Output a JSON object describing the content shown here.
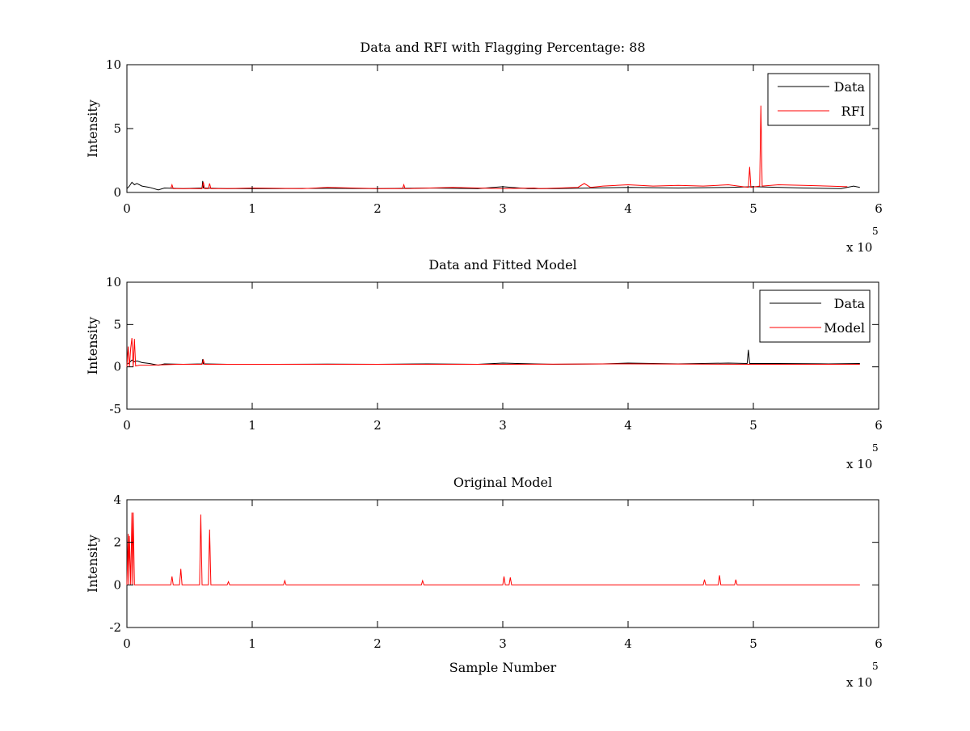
{
  "chart_data": [
    {
      "type": "line",
      "title": "Data and RFI with Flagging Percentage: 88",
      "xlabel": "",
      "ylabel": "Intensity",
      "xlim": [
        0,
        600000
      ],
      "ylim": [
        0,
        10
      ],
      "xticks": [
        "0",
        "1",
        "2",
        "3",
        "4",
        "5",
        "6"
      ],
      "yticks": [
        "0",
        "5",
        "10"
      ],
      "x_multiplier_base": "x 10",
      "x_multiplier_exponent": "5",
      "legend_position": "top-right",
      "series": [
        {
          "name": "Data",
          "color": "#000000",
          "x": [
            0,
            2000,
            4000,
            6000,
            8000,
            12000,
            18000,
            25000,
            30000,
            45000,
            60000,
            60500,
            61000,
            80000,
            120000,
            160000,
            200000,
            240000,
            280000,
            300000,
            320000,
            340000,
            360000,
            400000,
            440000,
            480000,
            500000,
            540000,
            570000,
            580000,
            585000
          ],
          "y": [
            0.3,
            0.5,
            0.8,
            0.6,
            0.7,
            0.5,
            0.4,
            0.2,
            0.35,
            0.3,
            0.35,
            0.9,
            0.35,
            0.3,
            0.3,
            0.32,
            0.3,
            0.35,
            0.3,
            0.45,
            0.3,
            0.3,
            0.33,
            0.4,
            0.35,
            0.4,
            0.45,
            0.35,
            0.3,
            0.5,
            0.4
          ]
        },
        {
          "name": "RFI",
          "color": "#ff0000",
          "x": [
            35000,
            36000,
            37000,
            60000,
            61000,
            62000,
            65000,
            66000,
            67000,
            80000,
            100000,
            140000,
            160000,
            200000,
            220000,
            221000,
            222000,
            260000,
            300000,
            325000,
            330000,
            360000,
            365000,
            370000,
            380000,
            400000,
            420000,
            440000,
            460000,
            480000,
            496000,
            497000,
            498000,
            505000,
            506000,
            507000,
            520000,
            540000,
            560000,
            575000
          ],
          "y": [
            0.3,
            0.6,
            0.3,
            0.3,
            0.8,
            0.3,
            0.3,
            0.7,
            0.3,
            0.3,
            0.35,
            0.3,
            0.4,
            0.3,
            0.3,
            0.6,
            0.3,
            0.4,
            0.3,
            0.35,
            0.3,
            0.4,
            0.7,
            0.4,
            0.5,
            0.6,
            0.5,
            0.55,
            0.5,
            0.6,
            0.4,
            2.0,
            0.4,
            0.5,
            6.8,
            0.5,
            0.6,
            0.55,
            0.5,
            0.45
          ]
        }
      ]
    },
    {
      "type": "line",
      "title": "Data and Fitted Model",
      "xlabel": "",
      "ylabel": "Intensity",
      "xlim": [
        0,
        600000
      ],
      "ylim": [
        -5,
        10
      ],
      "xticks": [
        "0",
        "1",
        "2",
        "3",
        "4",
        "5",
        "6"
      ],
      "yticks": [
        "-5",
        "0",
        "5",
        "10"
      ],
      "x_multiplier_base": "x 10",
      "x_multiplier_exponent": "5",
      "legend_position": "top-right",
      "series": [
        {
          "name": "Data",
          "color": "#000000",
          "x": [
            0,
            2000,
            4000,
            6000,
            8000,
            12000,
            18000,
            25000,
            30000,
            45000,
            60000,
            60500,
            61000,
            80000,
            120000,
            160000,
            200000,
            240000,
            280000,
            300000,
            340000,
            380000,
            400000,
            440000,
            480000,
            495000,
            496000,
            497000,
            520000,
            560000,
            585000
          ],
          "y": [
            0.3,
            0.5,
            0.8,
            0.6,
            0.7,
            0.5,
            0.4,
            0.2,
            0.35,
            0.3,
            0.35,
            0.9,
            0.35,
            0.3,
            0.3,
            0.32,
            0.3,
            0.35,
            0.3,
            0.45,
            0.3,
            0.35,
            0.45,
            0.35,
            0.45,
            0.4,
            2.0,
            0.4,
            0.4,
            0.35,
            0.4
          ]
        },
        {
          "name": "Model",
          "color": "#ff0000",
          "x": [
            0,
            1000,
            2000,
            3000,
            4000,
            5000,
            6000,
            7000,
            10000,
            20000,
            40000,
            60000,
            61000,
            62000,
            80000,
            120000,
            200000,
            300000,
            400000,
            500000,
            585000
          ],
          "y": [
            0.0,
            2.4,
            0.0,
            2.2,
            3.4,
            0.0,
            3.3,
            0.1,
            0.2,
            0.2,
            0.3,
            0.3,
            0.8,
            0.3,
            0.3,
            0.3,
            0.3,
            0.3,
            0.35,
            0.3,
            0.3
          ]
        }
      ]
    },
    {
      "type": "line",
      "title": "Original Model",
      "xlabel": "Sample Number",
      "ylabel": "Intensity",
      "xlim": [
        0,
        600000
      ],
      "ylim": [
        -2,
        4
      ],
      "xticks": [
        "0",
        "1",
        "2",
        "3",
        "4",
        "5",
        "6"
      ],
      "yticks": [
        "-2",
        "0",
        "2",
        "4"
      ],
      "x_multiplier_base": "x 10",
      "x_multiplier_exponent": "5",
      "series": [
        {
          "color": "#ff0000",
          "x": [
            0,
            1000,
            1500,
            2000,
            3000,
            4000,
            4500,
            5000,
            6000,
            35000,
            36000,
            37000,
            42000,
            43000,
            44000,
            58000,
            59000,
            60000,
            61000,
            65000,
            66000,
            67000,
            80000,
            81000,
            82000,
            100000,
            125000,
            126000,
            127000,
            150000,
            200000,
            235000,
            236000,
            237000,
            260000,
            300000,
            301000,
            302000,
            305000,
            306000,
            307000,
            350000,
            400000,
            460000,
            461000,
            462000,
            472000,
            473000,
            474000,
            485000,
            486000,
            487000,
            520000,
            585000
          ],
          "y": [
            0.0,
            2.4,
            0.0,
            2.3,
            0.0,
            3.4,
            0.0,
            3.4,
            0.0,
            0.0,
            0.4,
            0.0,
            0.0,
            0.75,
            0.0,
            0.0,
            3.3,
            0.0,
            0.0,
            0.0,
            2.6,
            0.0,
            0.0,
            0.15,
            0.0,
            0.0,
            0.0,
            0.2,
            0.0,
            0.0,
            0.0,
            0.0,
            0.2,
            0.0,
            0.0,
            0.0,
            0.4,
            0.0,
            0.0,
            0.35,
            0.0,
            0.0,
            0.0,
            0.0,
            0.25,
            0.0,
            0.0,
            0.45,
            0.0,
            0.0,
            0.25,
            0.0,
            0.0,
            0.0
          ]
        }
      ]
    }
  ]
}
